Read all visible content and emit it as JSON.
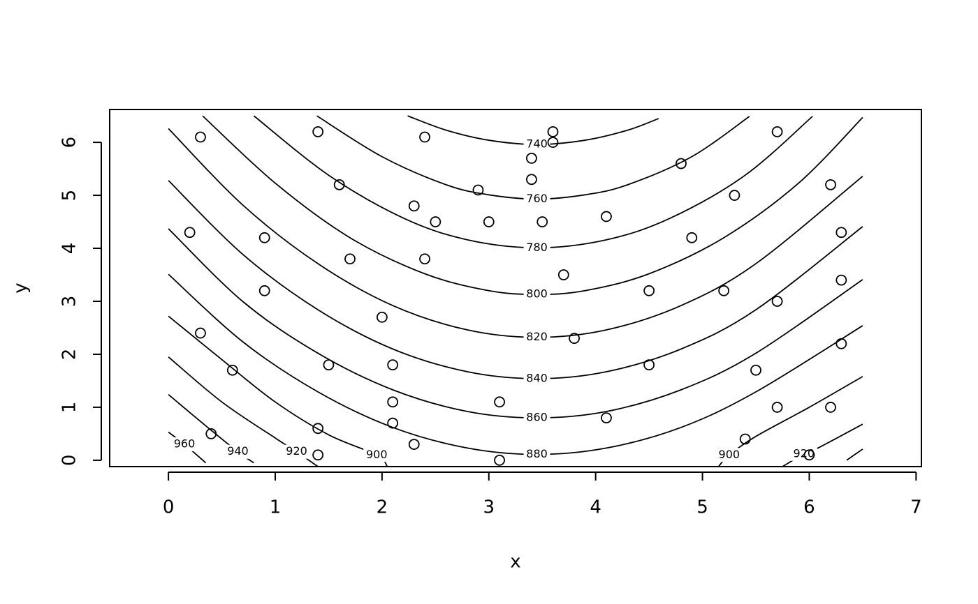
{
  "chart_data": {
    "type": "scatter-contour",
    "x_label": "x",
    "y_label": "y",
    "xlim": [
      -0.55,
      7.05
    ],
    "ylim": [
      -0.12,
      6.62
    ],
    "xticks": [
      0,
      1,
      2,
      3,
      4,
      5,
      6,
      7
    ],
    "yticks": [
      0,
      1,
      2,
      3,
      4,
      5,
      6
    ],
    "points": {
      "x": [
        0.3,
        1.4,
        2.4,
        3.6,
        3.6,
        3.4,
        3.4,
        5.7,
        4.8,
        1.6,
        2.9,
        5.3,
        6.2,
        2.3,
        2.5,
        3.0,
        3.5,
        4.1,
        0.2,
        0.9,
        4.9,
        6.3,
        1.7,
        2.4,
        3.7,
        6.3,
        0.9,
        4.5,
        5.2,
        5.7,
        2.0,
        0.3,
        3.8,
        6.3,
        0.6,
        1.5,
        2.1,
        4.5,
        5.5,
        2.1,
        3.1,
        5.7,
        6.2,
        4.1,
        1.4,
        2.1,
        0.4,
        5.4,
        2.3,
        1.4,
        6.0,
        3.1
      ],
      "y": [
        6.1,
        6.2,
        6.1,
        6.2,
        6.0,
        5.7,
        5.3,
        6.2,
        5.6,
        5.2,
        5.1,
        5.0,
        5.2,
        4.8,
        4.5,
        4.5,
        4.5,
        4.6,
        4.3,
        4.2,
        4.2,
        4.3,
        3.8,
        3.8,
        3.5,
        3.4,
        3.2,
        3.2,
        3.2,
        3.0,
        2.7,
        2.4,
        2.3,
        2.2,
        1.7,
        1.8,
        1.8,
        1.8,
        1.7,
        1.1,
        1.1,
        1.0,
        1.0,
        0.8,
        0.6,
        0.7,
        0.5,
        0.4,
        0.3,
        0.1,
        0.1,
        0.0
      ]
    },
    "contours": [
      {
        "level": 740,
        "x": [
          2.24,
          2.6,
          3.0,
          3.45,
          3.9,
          4.3,
          4.59
        ],
        "y": [
          6.5,
          6.23,
          6.04,
          5.96,
          6.04,
          6.23,
          6.45
        ]
      },
      {
        "level": 760,
        "x": [
          1.39,
          2.0,
          2.6,
          3.0,
          3.45,
          3.9,
          4.3,
          4.9,
          5.44
        ],
        "y": [
          6.5,
          5.73,
          5.2,
          5.01,
          4.93,
          5.01,
          5.2,
          5.73,
          6.49
        ]
      },
      {
        "level": 780,
        "x": [
          0.8,
          1.5,
          2.2,
          2.8,
          3.45,
          4.1,
          4.7,
          5.4,
          6.03
        ],
        "y": [
          6.5,
          5.38,
          4.57,
          4.16,
          4.01,
          4.16,
          4.57,
          5.38,
          6.49
        ]
      },
      {
        "level": 800,
        "x": [
          0.32,
          1.0,
          1.7,
          2.4,
          3.0,
          3.45,
          3.9,
          4.5,
          5.2,
          5.9,
          6.5
        ],
        "y": [
          6.5,
          5.23,
          4.2,
          3.52,
          3.2,
          3.13,
          3.2,
          3.52,
          4.2,
          5.23,
          6.47
        ]
      },
      {
        "level": 820,
        "x": [
          0,
          0.7,
          1.4,
          2.1,
          2.8,
          3.45,
          4.1,
          4.8,
          5.5,
          6.5
        ],
        "y": [
          6.26,
          4.81,
          3.71,
          2.92,
          2.46,
          2.32,
          2.46,
          2.92,
          3.71,
          5.36
        ]
      },
      {
        "level": 840,
        "x": [
          0,
          0.7,
          1.4,
          2.1,
          2.8,
          3.45,
          4.1,
          4.8,
          5.5,
          6.5
        ],
        "y": [
          5.28,
          3.88,
          2.84,
          2.1,
          1.67,
          1.54,
          1.67,
          2.1,
          2.84,
          4.41
        ]
      },
      {
        "level": 860,
        "x": [
          0,
          0.7,
          1.4,
          2.1,
          2.8,
          3.45,
          4.1,
          4.8,
          5.5,
          6.5
        ],
        "y": [
          4.37,
          2.99,
          2.02,
          1.33,
          0.92,
          0.8,
          0.92,
          1.33,
          2.02,
          3.41
        ]
      },
      {
        "level": 880,
        "x": [
          0,
          0.7,
          1.4,
          2.1,
          2.8,
          3.45,
          4.1,
          4.8,
          5.5,
          6.5
        ],
        "y": [
          3.51,
          2.23,
          1.29,
          0.62,
          0.23,
          0.11,
          0.23,
          0.62,
          1.29,
          2.54
        ]
      },
      {
        "level": 900,
        "x": [
          0,
          0.5,
          1.0,
          1.5,
          1.95,
          2.05,
          null,
          5.15,
          5.25,
          5.5,
          6.0,
          6.5
        ],
        "y": [
          2.72,
          1.9,
          1.1,
          0.48,
          0.1,
          -0.12,
          null,
          -0.12,
          0.1,
          0.45,
          1.0,
          1.58
        ]
      },
      {
        "level": 920,
        "x": [
          0,
          0.5,
          1.0,
          1.2,
          1.4,
          null,
          5.75,
          5.95,
          6.1,
          6.5
        ],
        "y": [
          1.95,
          1.1,
          0.42,
          0.16,
          -0.12,
          null,
          -0.12,
          0.12,
          0.25,
          0.68
        ]
      },
      {
        "level": 940,
        "x": [
          0,
          0.35,
          0.65,
          0.8,
          null,
          6.35,
          6.5
        ],
        "y": [
          1.24,
          0.65,
          0.16,
          -0.05,
          null,
          0.0,
          0.21
        ]
      },
      {
        "level": 960,
        "x": [
          0,
          0.15,
          0.35
        ],
        "y": [
          0.53,
          0.3,
          -0.05
        ]
      }
    ]
  }
}
